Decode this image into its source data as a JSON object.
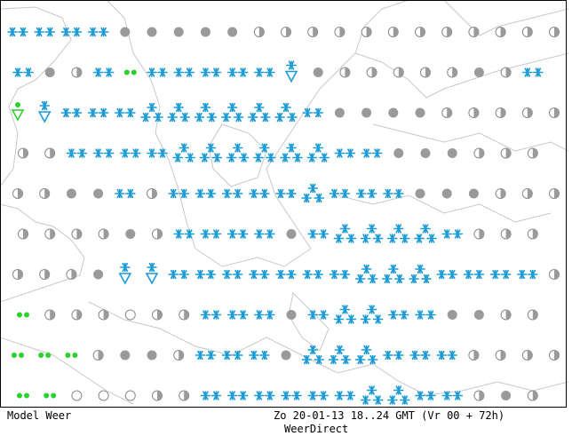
{
  "colors": {
    "snow": "#1a9ad6",
    "cloud": "#9a9a9a",
    "cloud_outline": "#8a8a8a",
    "rain": "#2bd12b",
    "coast": "#c8c8c8",
    "frame": "#000000"
  },
  "legend_symbols": {
    "snow": "two-asterisks",
    "heavy_snow": "three-asterisks",
    "snow_shower": "asterisk-over-triangle",
    "overcast": "grey-dot",
    "partly_cloudy": "half-grey-circle",
    "clear": "open-circle",
    "drizzle": "two-green-dots",
    "rain_shower": "green-dot-over-triangle"
  },
  "footer": {
    "left": "Model Weer",
    "right": "Zo 20-01-13 18..24 GMT (Vr 00 + 72h)",
    "sub": "WeerDirect"
  },
  "grid_rows": [
    [
      "snow",
      "snow",
      "snow",
      "snow",
      "overcast",
      "overcast",
      "overcast",
      "overcast",
      "overcast",
      "partly_cloudy",
      "partly_cloudy",
      "partly_cloudy",
      "partly_cloudy",
      "partly_cloudy",
      "partly_cloudy",
      "partly_cloudy",
      "partly_cloudy",
      "partly_cloudy",
      "partly_cloudy",
      "partly_cloudy",
      "partly_cloudy"
    ],
    [
      "snow",
      "overcast",
      "partly_cloudy",
      "snow",
      "drizzle",
      "snow",
      "snow",
      "snow",
      "snow",
      "snow",
      "snow_shower",
      "overcast",
      "partly_cloudy",
      "partly_cloudy",
      "partly_cloudy",
      "partly_cloudy",
      "partly_cloudy",
      "overcast",
      "partly_cloudy",
      "snow",
      "snow"
    ],
    [
      "rain_shower",
      "snow_shower",
      "snow",
      "snow",
      "snow",
      "heavy_snow",
      "heavy_snow",
      "heavy_snow",
      "heavy_snow",
      "heavy_snow",
      "heavy_snow",
      "snow",
      "overcast",
      "overcast",
      "overcast",
      "overcast",
      "partly_cloudy",
      "partly_cloudy",
      "partly_cloudy",
      "partly_cloudy",
      "partly_cloudy"
    ],
    [
      "partly_cloudy",
      "partly_cloudy",
      "snow",
      "snow",
      "snow",
      "snow",
      "heavy_snow",
      "heavy_snow",
      "heavy_snow",
      "heavy_snow",
      "heavy_snow",
      "heavy_snow",
      "snow",
      "snow",
      "overcast",
      "overcast",
      "overcast",
      "partly_cloudy",
      "partly_cloudy",
      "partly_cloudy",
      "partly_cloudy"
    ],
    [
      "partly_cloudy",
      "partly_cloudy",
      "overcast",
      "overcast",
      "snow",
      "partly_cloudy",
      "snow",
      "snow",
      "snow",
      "snow",
      "snow",
      "heavy_snow",
      "snow",
      "snow",
      "snow",
      "overcast",
      "overcast",
      "overcast",
      "partly_cloudy",
      "partly_cloudy",
      "partly_cloudy"
    ],
    [
      "partly_cloudy",
      "partly_cloudy",
      "partly_cloudy",
      "partly_cloudy",
      "overcast",
      "partly_cloudy",
      "snow",
      "snow",
      "snow",
      "snow",
      "overcast",
      "snow",
      "heavy_snow",
      "heavy_snow",
      "heavy_snow",
      "heavy_snow",
      "snow",
      "partly_cloudy",
      "partly_cloudy",
      "partly_cloudy",
      "partly_cloudy"
    ],
    [
      "partly_cloudy",
      "partly_cloudy",
      "partly_cloudy",
      "overcast",
      "snow_shower",
      "snow_shower",
      "snow",
      "snow",
      "snow",
      "snow",
      "snow",
      "snow",
      "snow",
      "heavy_snow",
      "heavy_snow",
      "heavy_snow",
      "snow",
      "snow",
      "snow",
      "snow",
      "partly_cloudy"
    ],
    [
      "drizzle",
      "partly_cloudy",
      "partly_cloudy",
      "partly_cloudy",
      "clear",
      "partly_cloudy",
      "partly_cloudy",
      "snow",
      "snow",
      "snow",
      "overcast",
      "snow",
      "heavy_snow",
      "heavy_snow",
      "snow",
      "snow",
      "overcast",
      "overcast",
      "partly_cloudy",
      "partly_cloudy",
      "partly_cloudy"
    ],
    [
      "drizzle",
      "drizzle",
      "drizzle",
      "partly_cloudy",
      "overcast",
      "overcast",
      "partly_cloudy",
      "snow",
      "snow",
      "snow",
      "overcast",
      "heavy_snow",
      "heavy_snow",
      "heavy_snow",
      "snow",
      "snow",
      "snow",
      "partly_cloudy",
      "partly_cloudy",
      "partly_cloudy",
      "partly_cloudy"
    ],
    [
      "drizzle",
      "drizzle",
      "clear",
      "clear",
      "clear",
      "partly_cloudy",
      "partly_cloudy",
      "snow",
      "snow",
      "snow",
      "snow",
      "snow",
      "snow",
      "heavy_snow",
      "heavy_snow",
      "snow",
      "snow",
      "partly_cloudy",
      "overcast",
      "partly_cloudy",
      "partly_cloudy"
    ]
  ]
}
